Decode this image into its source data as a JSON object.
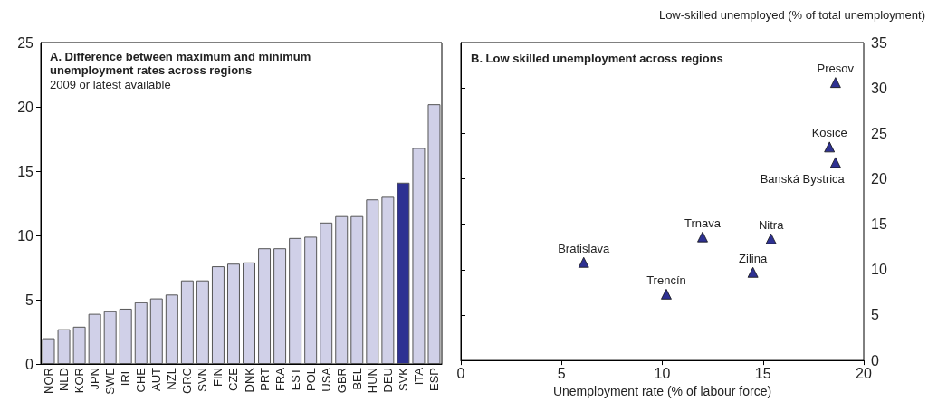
{
  "chart_data": [
    {
      "type": "bar",
      "title": "A. Difference between maximum and minimum unemployment rates across regions",
      "subtitle": "2009 or latest available",
      "categories": [
        "NOR",
        "NLD",
        "KOR",
        "JPN",
        "SWE",
        "IRL",
        "CHE",
        "AUT",
        "NZL",
        "GRC",
        "SVN",
        "FIN",
        "CZE",
        "DNK",
        "PRT",
        "FRA",
        "EST",
        "POL",
        "USA",
        "GBR",
        "BEL",
        "HUN",
        "DEU",
        "SVK",
        "ITA",
        "ESP"
      ],
      "values": [
        2.0,
        2.7,
        2.9,
        3.9,
        4.1,
        4.3,
        4.8,
        5.1,
        5.4,
        6.5,
        6.5,
        7.6,
        7.8,
        7.9,
        9.0,
        9.0,
        9.8,
        9.9,
        11.0,
        11.5,
        11.5,
        12.8,
        13.0,
        14.1,
        16.8,
        20.2
      ],
      "colors": [
        "#d0d0e8",
        "#d0d0e8",
        "#d0d0e8",
        "#d0d0e8",
        "#d0d0e8",
        "#d0d0e8",
        "#d0d0e8",
        "#d0d0e8",
        "#d0d0e8",
        "#d0d0e8",
        "#d0d0e8",
        "#d0d0e8",
        "#d0d0e8",
        "#d0d0e8",
        "#d0d0e8",
        "#d0d0e8",
        "#d0d0e8",
        "#d0d0e8",
        "#d0d0e8",
        "#d0d0e8",
        "#d0d0e8",
        "#d0d0e8",
        "#d0d0e8",
        "#2e3192",
        "#d0d0e8",
        "#d0d0e8"
      ],
      "ylim": [
        0,
        25
      ],
      "yticks": [
        0,
        5,
        10,
        15,
        20,
        25
      ],
      "grid": false
    },
    {
      "type": "scatter",
      "title": "B. Low skilled unemployment across regions",
      "xlabel": "Unemployment rate (% of labour force)",
      "ylabel": "Low-skilled unemployed (% of total unemployment)",
      "x": [
        18.6,
        18.3,
        18.6,
        12.0,
        15.4,
        6.1,
        14.5,
        10.2
      ],
      "values": [
        30.6,
        23.5,
        21.8,
        13.6,
        13.4,
        10.8,
        9.7,
        7.3
      ],
      "color": "#2e3192",
      "marker": "triangle",
      "annotations": [
        {
          "text": "Presov",
          "x": 18.6,
          "y": 30.6
        },
        {
          "text": "Kosice",
          "x": 18.3,
          "y": 23.5
        },
        {
          "text": "Banská Bystrica",
          "x": 18.6,
          "y": 21.8
        },
        {
          "text": "Trnava",
          "x": 12.0,
          "y": 13.6
        },
        {
          "text": "Nitra",
          "x": 15.4,
          "y": 13.4
        },
        {
          "text": "Bratislava",
          "x": 6.1,
          "y": 10.8
        },
        {
          "text": "Zilina",
          "x": 14.5,
          "y": 9.7
        },
        {
          "text": "Trencín",
          "x": 10.2,
          "y": 7.3
        }
      ],
      "xlim": [
        0,
        20
      ],
      "xticks": [
        0,
        5,
        10,
        15,
        20
      ],
      "ylim": [
        0,
        35
      ],
      "yticks": [
        0,
        5,
        10,
        15,
        20,
        25,
        30,
        35
      ],
      "grid": false
    }
  ]
}
